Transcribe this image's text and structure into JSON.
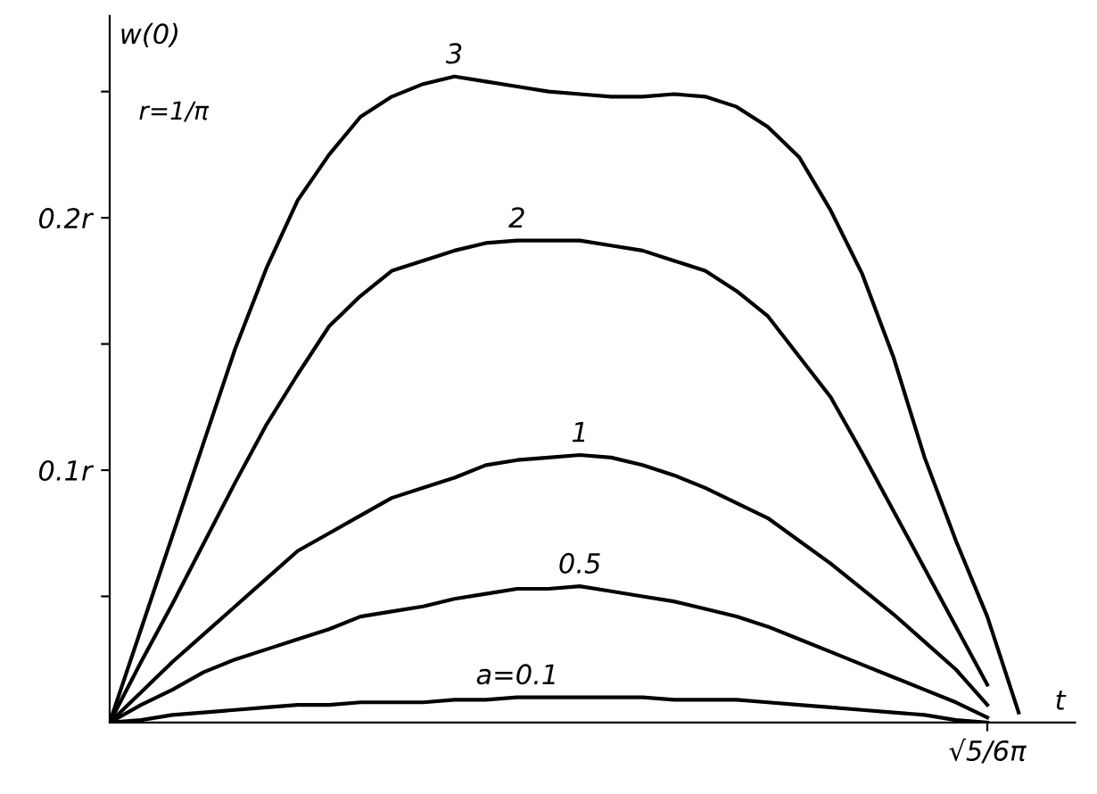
{
  "chart_data": {
    "type": "line",
    "xlabel": "t",
    "ylabel": "w(0)",
    "annotations": [
      "r=1/π"
    ],
    "categories": [
      null,
      null,
      null,
      null,
      null,
      null,
      null,
      null,
      null,
      null,
      null,
      null,
      null,
      null,
      null,
      null,
      null,
      null,
      null,
      null,
      null,
      null,
      null,
      null,
      null,
      null,
      null,
      null,
      "√5/6π",
      null,
      null
    ],
    "ylim": [
      0,
      0.28
    ],
    "yticks": [
      {
        "value": 0.05,
        "label": null
      },
      {
        "value": 0.1,
        "label": "0.1r"
      },
      {
        "value": 0.15,
        "label": null
      },
      {
        "value": 0.2,
        "label": "0.2r"
      },
      {
        "value": 0.25,
        "label": null
      }
    ],
    "grid": false,
    "legend": false,
    "marker": "none",
    "line_style": "solid",
    "series": [
      {
        "name": "3",
        "color": "#000000",
        "values": [
          0,
          0.037,
          0.074,
          0.111,
          0.148,
          0.18,
          0.207,
          0.225,
          0.24,
          0.248,
          0.253,
          0.256,
          0.254,
          0.252,
          0.25,
          0.249,
          0.248,
          0.248,
          0.249,
          0.248,
          0.244,
          0.236,
          0.224,
          0.203,
          0.178,
          0.145,
          0.105,
          0.072,
          0.042,
          0.004,
          null
        ]
      },
      {
        "name": "2",
        "color": "#000000",
        "values": [
          0,
          0.024,
          0.047,
          0.071,
          0.095,
          0.118,
          0.138,
          0.157,
          0.169,
          0.179,
          0.183,
          0.187,
          0.19,
          0.191,
          0.191,
          0.191,
          0.189,
          0.187,
          0.183,
          0.179,
          0.171,
          0.161,
          0.145,
          0.129,
          0.107,
          0.084,
          0.061,
          0.038,
          0.015,
          null,
          null
        ]
      },
      {
        "name": "1",
        "color": "#000000",
        "values": [
          0,
          0.012,
          0.024,
          0.035,
          0.046,
          0.057,
          0.068,
          0.075,
          0.082,
          0.089,
          0.093,
          0.097,
          0.102,
          0.104,
          0.105,
          0.106,
          0.105,
          0.102,
          0.098,
          0.093,
          0.087,
          0.081,
          0.072,
          0.063,
          0.053,
          0.043,
          0.032,
          0.021,
          0.007,
          null,
          null
        ]
      },
      {
        "name": "0.5",
        "color": "#000000",
        "values": [
          0,
          0.007,
          0.013,
          0.02,
          0.025,
          0.029,
          0.033,
          0.037,
          0.042,
          0.044,
          0.046,
          0.049,
          0.051,
          0.053,
          0.053,
          0.054,
          0.052,
          0.05,
          0.048,
          0.045,
          0.042,
          0.038,
          0.033,
          0.028,
          0.023,
          0.018,
          0.013,
          0.008,
          0.002,
          null,
          null
        ]
      },
      {
        "name": "a=0.1",
        "color": "#000000",
        "values": [
          0,
          0.001,
          0.003,
          0.004,
          0.005,
          0.006,
          0.007,
          0.007,
          0.008,
          0.008,
          0.008,
          0.009,
          0.009,
          0.01,
          0.01,
          0.01,
          0.01,
          0.01,
          0.009,
          0.009,
          0.009,
          0.008,
          0.007,
          0.006,
          0.005,
          0.004,
          0.003,
          0.001,
          0,
          null,
          null
        ]
      }
    ]
  }
}
